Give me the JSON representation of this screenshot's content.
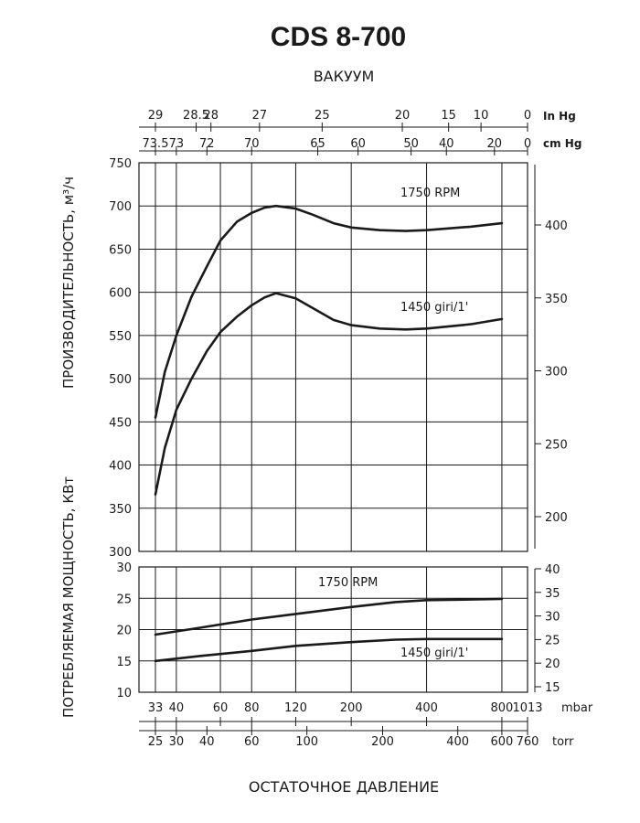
{
  "chart_data": {
    "type": "line",
    "title": "CDS 8-700",
    "vacuum_label": "ВАКУУМ",
    "pressure_label": "ОСТАТОЧНОЕ ДАВЛЕНИЕ",
    "y_left_label_top": "ПРОИЗВОДИТЕЛЬНОСТЬ, м³/ч",
    "y_left_label_bottom": "ПОТРЕБЛЯЕМАЯ МОЩНОСТЬ, КВт",
    "in_hg": {
      "unit": "In Hg",
      "ticks": [
        {
          "label": "29",
          "mbar": 33
        },
        {
          "label": "28.5",
          "mbar": 48
        },
        {
          "label": "28",
          "mbar": 55
        },
        {
          "label": "27",
          "mbar": 86
        },
        {
          "label": "25",
          "mbar": 153
        },
        {
          "label": "20",
          "mbar": 320
        },
        {
          "label": "15",
          "mbar": 490
        },
        {
          "label": "10",
          "mbar": 660
        },
        {
          "label": "0",
          "mbar": 1013
        }
      ]
    },
    "cm_hg": {
      "unit": "cm Hg",
      "ticks": [
        {
          "label": "73.5",
          "mbar": 33
        },
        {
          "label": "73",
          "mbar": 40
        },
        {
          "label": "72",
          "mbar": 53
        },
        {
          "label": "70",
          "mbar": 80
        },
        {
          "label": "65",
          "mbar": 147
        },
        {
          "label": "60",
          "mbar": 213
        },
        {
          "label": "50",
          "mbar": 347
        },
        {
          "label": "40",
          "mbar": 480
        },
        {
          "label": "20",
          "mbar": 747
        },
        {
          "label": "0",
          "mbar": 1013
        }
      ]
    },
    "mbar": {
      "unit": "mbar",
      "ticks": [
        {
          "label": "33",
          "mbar": 33
        },
        {
          "label": "40",
          "mbar": 40
        },
        {
          "label": "60",
          "mbar": 60
        },
        {
          "label": "80",
          "mbar": 80
        },
        {
          "label": "120",
          "mbar": 120
        },
        {
          "label": "200",
          "mbar": 200
        },
        {
          "label": "400",
          "mbar": 400
        },
        {
          "label": "800",
          "mbar": 800
        },
        {
          "label": "1013",
          "mbar": 1013
        }
      ]
    },
    "torr": {
      "unit": "torr",
      "ticks": [
        {
          "label": "25",
          "mbar": 33
        },
        {
          "label": "30",
          "mbar": 40
        },
        {
          "label": "40",
          "mbar": 53
        },
        {
          "label": "60",
          "mbar": 80
        },
        {
          "label": "100",
          "mbar": 133
        },
        {
          "label": "200",
          "mbar": 267
        },
        {
          "label": "400",
          "mbar": 533
        },
        {
          "label": "600",
          "mbar": 800
        },
        {
          "label": "760",
          "mbar": 1013
        }
      ]
    },
    "capacity": {
      "ylim": [
        300,
        750
      ],
      "y_ticks": [
        "300",
        "350",
        "400",
        "450",
        "500",
        "550",
        "600",
        "650",
        "700",
        "750"
      ],
      "right_ticks": [
        "200",
        "250",
        "300",
        "350",
        "400"
      ],
      "series": [
        {
          "name": "1750 RPM",
          "x": [
            33,
            36,
            40,
            46,
            53,
            60,
            70,
            80,
            90,
            100,
            120,
            140,
            170,
            200,
            260,
            330,
            400,
            600,
            800
          ],
          "y": [
            455,
            508,
            550,
            595,
            630,
            660,
            682,
            692,
            698,
            700,
            697,
            690,
            680,
            675,
            672,
            671,
            672,
            676,
            680
          ]
        },
        {
          "name": "1450 giri/1'",
          "x": [
            33,
            36,
            40,
            46,
            53,
            60,
            70,
            80,
            90,
            100,
            120,
            140,
            170,
            200,
            260,
            330,
            400,
            600,
            800
          ],
          "y": [
            366,
            420,
            464,
            500,
            532,
            554,
            572,
            585,
            594,
            599,
            593,
            582,
            568,
            562,
            558,
            557,
            558,
            563,
            569
          ]
        }
      ]
    },
    "power": {
      "ylim": [
        10,
        30
      ],
      "y_ticks": [
        "10",
        "15",
        "20",
        "25",
        "30"
      ],
      "right_ticks": [
        "15",
        "20",
        "25",
        "30",
        "35",
        "40"
      ],
      "series": [
        {
          "name": "1750 RPM",
          "x": [
            33,
            50,
            80,
            120,
            200,
            300,
            400,
            600,
            800
          ],
          "y": [
            19.2,
            20.3,
            21.6,
            22.5,
            23.6,
            24.4,
            24.7,
            24.8,
            24.9
          ]
        },
        {
          "name": "1450 giri/1'",
          "x": [
            33,
            50,
            80,
            120,
            200,
            300,
            400,
            600,
            800
          ],
          "y": [
            15.0,
            15.8,
            16.6,
            17.4,
            18.0,
            18.4,
            18.5,
            18.5,
            18.5
          ]
        }
      ]
    }
  }
}
